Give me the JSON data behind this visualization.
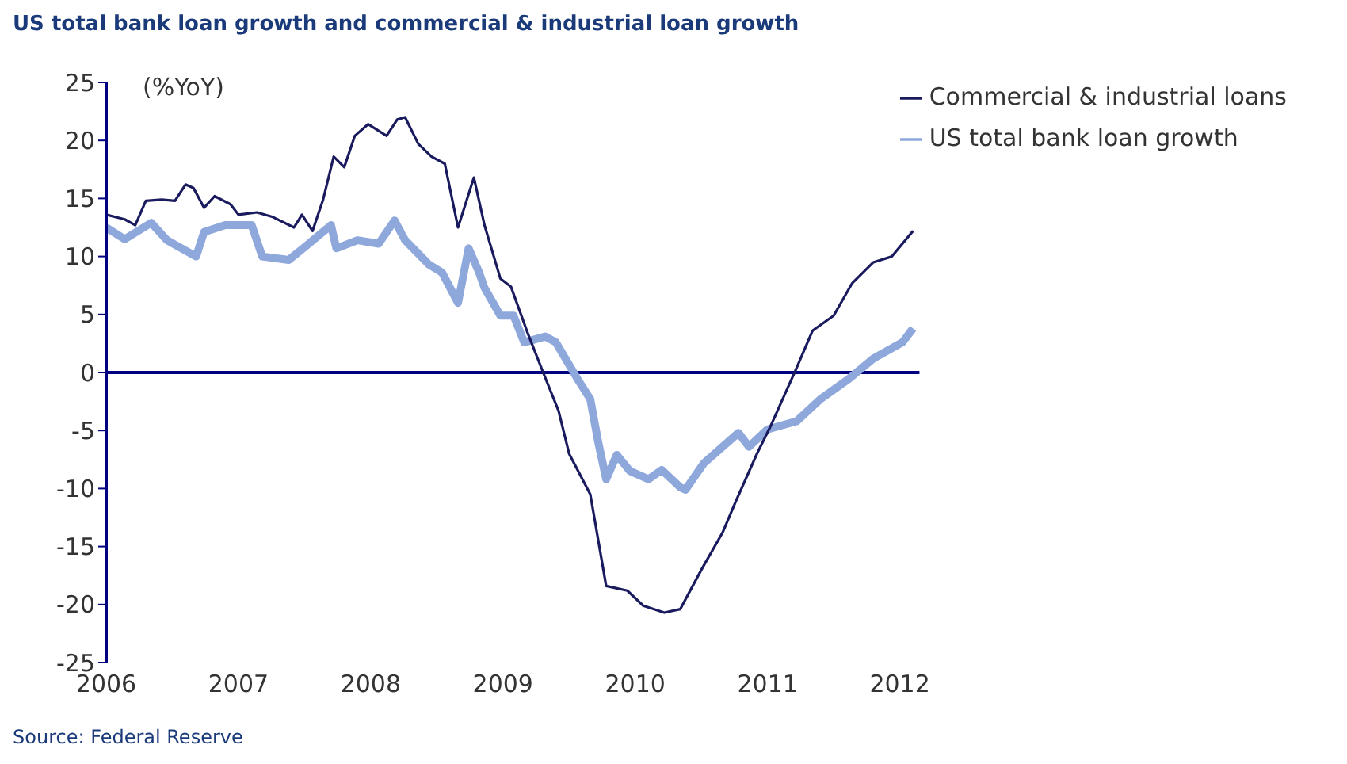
{
  "chart_data": {
    "type": "line",
    "title": "US total bank loan growth and commercial & industrial loan growth",
    "ylabel": "(%YoY)",
    "annotations": [
      "Source: Federal Reserve"
    ],
    "xlim": [
      2006,
      2012.15
    ],
    "xticks": [
      2006,
      2007,
      2008,
      2009,
      2010,
      2011,
      2012
    ],
    "ylim": [
      -25,
      25
    ],
    "yticks": [
      -25,
      -20,
      -15,
      -10,
      -5,
      0,
      5,
      10,
      15,
      20,
      25
    ],
    "grid": false,
    "legend": "top right",
    "marker": "none",
    "ref_lines": [
      {
        "axis": "y",
        "value": 0,
        "color": "#000080"
      }
    ],
    "series": [
      {
        "name": "US total bank loan growth",
        "color": "#8fa8dc",
        "x": [
          2006.0,
          2006.14,
          2006.34,
          2006.46,
          2006.68,
          2006.74,
          2006.9,
          2007.1,
          2007.18,
          2007.38,
          2007.5,
          2007.7,
          2007.74,
          2007.9,
          2008.06,
          2008.18,
          2008.26,
          2008.44,
          2008.54,
          2008.66,
          2008.74,
          2008.82,
          2008.86,
          2008.98,
          2009.08,
          2009.16,
          2009.32,
          2009.4,
          2009.56,
          2009.66,
          2009.72,
          2009.78,
          2009.86,
          2009.96,
          2010.1,
          2010.2,
          2010.34,
          2010.38,
          2010.52,
          2010.78,
          2010.86,
          2011.0,
          2011.22,
          2011.4,
          2011.62,
          2011.8,
          2012.02,
          2012.1
        ],
        "values": [
          12.5,
          11.5,
          12.9,
          11.4,
          10,
          12.1,
          12.7,
          12.7,
          10,
          9.7,
          10.8,
          12.7,
          10.7,
          11.4,
          11.1,
          13.1,
          11.4,
          9.3,
          8.6,
          6,
          10.7,
          8.6,
          7.3,
          4.9,
          4.9,
          2.6,
          3.1,
          2.6,
          -0.5,
          -2.3,
          -6,
          -9.2,
          -7.1,
          -8.5,
          -9.2,
          -8.4,
          -9.9,
          -10.1,
          -7.8,
          -5.2,
          -6.4,
          -4.9,
          -4.2,
          -2.3,
          -0.5,
          1.2,
          2.6,
          3.8
        ]
      },
      {
        "name": "Commercial & industrial loans",
        "color": "#1a1a5e",
        "x": [
          2006.0,
          2006.14,
          2006.22,
          2006.3,
          2006.42,
          2006.52,
          2006.6,
          2006.66,
          2006.74,
          2006.82,
          2006.94,
          2007.0,
          2007.14,
          2007.26,
          2007.42,
          2007.48,
          2007.56,
          2007.64,
          2007.72,
          2007.8,
          2007.88,
          2007.98,
          2008.12,
          2008.2,
          2008.26,
          2008.36,
          2008.46,
          2008.56,
          2008.66,
          2008.78,
          2008.86,
          2008.98,
          2009.06,
          2009.18,
          2009.3,
          2009.42,
          2009.5,
          2009.66,
          2009.78,
          2009.94,
          2010.06,
          2010.22,
          2010.34,
          2010.5,
          2010.66,
          2010.76,
          2010.92,
          2011.02,
          2011.22,
          2011.34,
          2011.5,
          2011.64,
          2011.8,
          2011.94,
          2012.1
        ],
        "values": [
          13.6,
          13.2,
          12.7,
          14.8,
          14.9,
          14.8,
          16.2,
          15.9,
          14.2,
          15.2,
          14.5,
          13.6,
          13.8,
          13.4,
          12.5,
          13.6,
          12.2,
          14.9,
          18.6,
          17.7,
          20.4,
          21.4,
          20.4,
          21.8,
          22,
          19.7,
          18.6,
          18,
          12.5,
          16.8,
          12.7,
          8.1,
          7.4,
          3.6,
          0.1,
          -3.3,
          -7,
          -10.5,
          -18.4,
          -18.8,
          -20.1,
          -20.7,
          -20.4,
          -17,
          -13.8,
          -11.1,
          -7,
          -4.7,
          0.4,
          3.6,
          4.9,
          7.7,
          9.5,
          10,
          12.2
        ]
      }
    ]
  }
}
